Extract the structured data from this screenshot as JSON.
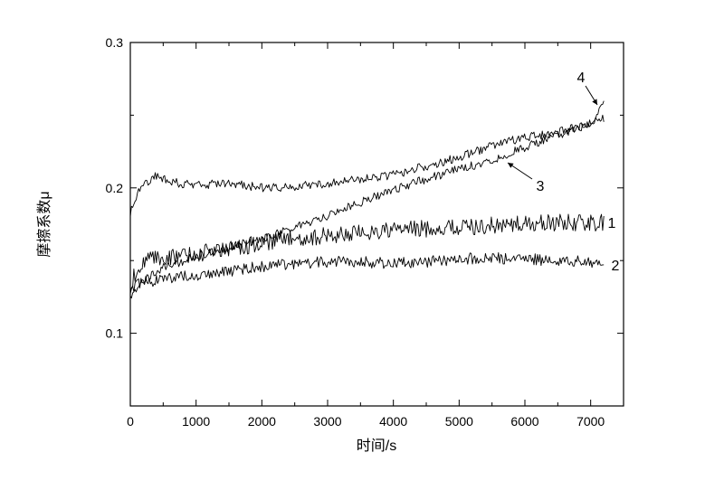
{
  "chart_data": {
    "type": "line",
    "title": "",
    "xlabel": "时间/s",
    "ylabel": "摩擦系数μ",
    "xlim": [
      0,
      7500
    ],
    "ylim": [
      0.05,
      0.3
    ],
    "x_ticks": [
      0,
      1000,
      2000,
      3000,
      4000,
      5000,
      6000,
      7000
    ],
    "y_ticks": [
      0.1,
      0.2,
      0.3
    ],
    "grid": false,
    "legend": "none",
    "line_color": "#000000",
    "series": [
      {
        "label": "1",
        "x": [
          0,
          100,
          300,
          500,
          1000,
          1500,
          2000,
          2500,
          3000,
          3500,
          4000,
          4500,
          5000,
          5500,
          6000,
          6500,
          7000,
          7200
        ],
        "values": [
          0.13,
          0.146,
          0.15,
          0.152,
          0.155,
          0.158,
          0.162,
          0.165,
          0.167,
          0.169,
          0.171,
          0.172,
          0.173,
          0.174,
          0.175,
          0.176,
          0.176,
          0.176
        ],
        "noise": 0.006
      },
      {
        "label": "2",
        "x": [
          0,
          100,
          300,
          500,
          1000,
          1500,
          2000,
          2500,
          3000,
          3500,
          4000,
          4500,
          5000,
          5500,
          6000,
          6500,
          7000,
          7200
        ],
        "values": [
          0.126,
          0.134,
          0.136,
          0.137,
          0.14,
          0.143,
          0.146,
          0.148,
          0.149,
          0.149,
          0.148,
          0.149,
          0.151,
          0.152,
          0.151,
          0.15,
          0.149,
          0.148
        ],
        "noise": 0.004
      },
      {
        "label": "3",
        "x": [
          0,
          100,
          300,
          500,
          1000,
          1500,
          2000,
          2500,
          3000,
          3500,
          4000,
          4500,
          5000,
          5500,
          6000,
          6500,
          7000,
          7200
        ],
        "values": [
          0.123,
          0.132,
          0.14,
          0.145,
          0.153,
          0.159,
          0.165,
          0.173,
          0.181,
          0.19,
          0.199,
          0.206,
          0.213,
          0.219,
          0.228,
          0.236,
          0.244,
          0.248
        ],
        "noise": 0.003
      },
      {
        "label": "4",
        "x": [
          0,
          100,
          250,
          400,
          600,
          800,
          1000,
          1500,
          2000,
          2500,
          3000,
          3500,
          4000,
          4500,
          5000,
          5500,
          6000,
          6500,
          7000,
          7200
        ],
        "values": [
          0.182,
          0.196,
          0.204,
          0.209,
          0.204,
          0.203,
          0.202,
          0.203,
          0.2,
          0.201,
          0.203,
          0.206,
          0.209,
          0.215,
          0.221,
          0.229,
          0.235,
          0.238,
          0.245,
          0.257
        ],
        "noise": 0.003
      }
    ]
  }
}
